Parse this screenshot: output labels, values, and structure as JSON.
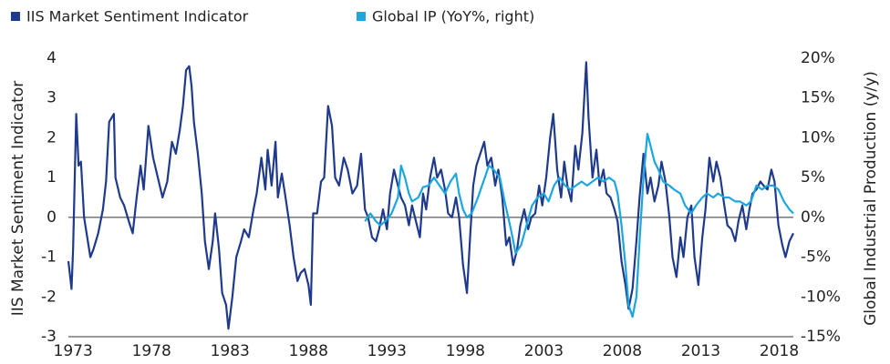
{
  "chart_data": {
    "type": "line",
    "y_label": "IIS Market Sentiment Indicator",
    "y2_label": "Global Industrial Production (y/y)",
    "xlim": [
      1972.7,
      2018.9
    ],
    "xticks": [
      1973,
      1978,
      1983,
      1988,
      1993,
      1998,
      2003,
      2008,
      2013,
      2018
    ],
    "ylim": [
      -3,
      4
    ],
    "yticks": [
      -3,
      -2,
      -1,
      0,
      1,
      2,
      3,
      4
    ],
    "y2lim": [
      -15,
      20
    ],
    "y2ticks": [
      {
        "value": -15,
        "label": "-15%"
      },
      {
        "value": -10,
        "label": "-10%"
      },
      {
        "value": -5,
        "label": "-5%"
      },
      {
        "value": 0,
        "label": "0%"
      },
      {
        "value": 5,
        "label": "5%"
      },
      {
        "value": 10,
        "label": "10%"
      },
      {
        "value": 15,
        "label": "15%"
      },
      {
        "value": 20,
        "label": "20%"
      }
    ],
    "zero_line": true,
    "series": [
      {
        "name": "IIS Market Sentiment Indicator",
        "color": "#1f3a8c",
        "x": [
          1972.7,
          1972.9,
          1973.0,
          1973.2,
          1973.35,
          1973.5,
          1973.7,
          1973.9,
          1974.1,
          1974.3,
          1974.6,
          1974.9,
          1975.1,
          1975.3,
          1975.6,
          1975.7,
          1976.0,
          1976.25,
          1976.55,
          1976.8,
          1977.05,
          1977.3,
          1977.5,
          1977.8,
          1978.1,
          1978.4,
          1978.7,
          1979.0,
          1979.3,
          1979.55,
          1979.8,
          1980.0,
          1980.2,
          1980.4,
          1980.55,
          1980.7,
          1980.95,
          1981.2,
          1981.4,
          1981.65,
          1981.9,
          1982.05,
          1982.3,
          1982.5,
          1982.75,
          1982.9,
          1983.15,
          1983.4,
          1983.7,
          1983.9,
          1984.2,
          1984.5,
          1984.7,
          1985.0,
          1985.25,
          1985.4,
          1985.65,
          1985.9,
          1986.05,
          1986.3,
          1986.5,
          1986.8,
          1987.05,
          1987.3,
          1987.5,
          1987.75,
          1988.0,
          1988.15,
          1988.3,
          1988.55,
          1988.8,
          1989.0,
          1989.25,
          1989.5,
          1989.7,
          1989.95,
          1990.25,
          1990.5,
          1990.8,
          1991.1,
          1991.35,
          1991.6,
          1991.8,
          1992.05,
          1992.3,
          1992.5,
          1992.75,
          1993.0,
          1993.2,
          1993.45,
          1993.7,
          1993.9,
          1994.15,
          1994.4,
          1994.6,
          1994.85,
          1995.1,
          1995.3,
          1995.5,
          1995.75,
          1996.0,
          1996.2,
          1996.45,
          1996.7,
          1996.9,
          1997.15,
          1997.4,
          1997.6,
          1997.85,
          1998.1,
          1998.3,
          1998.5,
          1998.7,
          1998.95,
          1999.2,
          1999.4,
          1999.65,
          1999.9,
          2000.1,
          2000.35,
          2000.6,
          2000.8,
          2001.05,
          2001.3,
          2001.5,
          2001.75,
          2002.0,
          2002.2,
          2002.45,
          2002.7,
          2002.9,
          2003.15,
          2003.4,
          2003.6,
          2003.85,
          2004.1,
          2004.3,
          2004.5,
          2004.75,
          2005.0,
          2005.2,
          2005.45,
          2005.7,
          2005.85,
          2006.1,
          2006.35,
          2006.55,
          2006.8,
          2007.0,
          2007.25,
          2007.5,
          2007.7,
          2007.95,
          2008.2,
          2008.4,
          2008.65,
          2008.9,
          2009.1,
          2009.35,
          2009.6,
          2009.8,
          2010.05,
          2010.3,
          2010.5,
          2010.75,
          2011.0,
          2011.2,
          2011.45,
          2011.7,
          2011.9,
          2012.15,
          2012.4,
          2012.6,
          2012.85,
          2013.1,
          2013.3,
          2013.55,
          2013.8,
          2014.0,
          2014.25,
          2014.5,
          2014.7,
          2014.95,
          2015.2,
          2015.4,
          2015.65,
          2015.9,
          2016.1,
          2016.3,
          2016.55,
          2016.8,
          2017.0,
          2017.25,
          2017.5,
          2017.7,
          2017.95,
          2018.2,
          2018.4,
          2018.65,
          2018.9
        ],
        "values": [
          -1.1,
          -1.8,
          -0.8,
          2.6,
          1.3,
          1.4,
          0.0,
          -0.5,
          -1.0,
          -0.8,
          -0.4,
          0.2,
          0.9,
          2.4,
          2.6,
          1.0,
          0.5,
          0.3,
          -0.1,
          -0.4,
          0.5,
          1.3,
          0.7,
          2.3,
          1.5,
          1.0,
          0.5,
          0.9,
          1.9,
          1.6,
          2.2,
          2.8,
          3.7,
          3.8,
          3.3,
          2.4,
          1.6,
          0.6,
          -0.6,
          -1.3,
          -0.6,
          0.1,
          -0.8,
          -1.9,
          -2.2,
          -2.8,
          -2.0,
          -1.0,
          -0.6,
          -0.3,
          -0.5,
          0.2,
          0.6,
          1.5,
          0.7,
          1.7,
          0.8,
          1.9,
          0.5,
          1.1,
          0.6,
          -0.2,
          -1.0,
          -1.6,
          -1.4,
          -1.3,
          -1.7,
          -2.2,
          0.1,
          0.1,
          0.9,
          1.0,
          2.8,
          2.3,
          1.0,
          0.8,
          1.5,
          1.2,
          0.6,
          0.8,
          1.6,
          0.2,
          0.0,
          -0.5,
          -0.6,
          -0.3,
          0.2,
          -0.3,
          0.6,
          1.2,
          0.8,
          0.5,
          0.3,
          -0.2,
          0.3,
          -0.1,
          -0.5,
          0.6,
          0.2,
          1.0,
          1.5,
          1.0,
          1.2,
          0.7,
          0.1,
          0.0,
          0.5,
          0.0,
          -1.2,
          -1.9,
          -0.5,
          0.8,
          1.3,
          1.6,
          1.9,
          1.3,
          1.5,
          0.8,
          1.2,
          0.5,
          -0.7,
          -0.5,
          -1.2,
          -0.8,
          -0.2,
          0.2,
          -0.3,
          0.0,
          0.1,
          0.8,
          0.3,
          1.0,
          2.0,
          2.6,
          1.2,
          0.5,
          1.4,
          0.8,
          0.4,
          1.8,
          1.2,
          2.1,
          3.9,
          2.5,
          1.0,
          1.7,
          0.8,
          1.2,
          0.6,
          0.5,
          0.2,
          -0.1,
          -1.1,
          -1.7,
          -2.3,
          -1.8,
          -0.6,
          0.5,
          1.6,
          0.6,
          1.0,
          0.4,
          0.8,
          1.4,
          0.9,
          0.0,
          -1.0,
          -1.5,
          -0.5,
          -1.0,
          0.0,
          0.3,
          -1.0,
          -1.7,
          -0.5,
          0.2,
          1.5,
          0.9,
          1.4,
          1.0,
          0.3,
          -0.2,
          -0.3,
          -0.6,
          -0.1,
          0.3,
          -0.3,
          0.2,
          0.6,
          0.7,
          0.9,
          0.8,
          0.7,
          1.2,
          0.9,
          -0.2,
          -0.7,
          -1.0,
          -0.6,
          -0.4
        ]
      },
      {
        "name": "Global IP (YoY%, right)",
        "color": "#1ba6df",
        "axis": "y2",
        "x": [
          1991.6,
          1991.95,
          1992.3,
          1992.6,
          1993.0,
          1993.3,
          1993.7,
          1993.9,
          1994.15,
          1994.4,
          1994.6,
          1995.0,
          1995.3,
          1995.65,
          1996.0,
          1996.35,
          1996.7,
          1997.05,
          1997.4,
          1997.6,
          1997.85,
          1998.1,
          1998.4,
          1998.8,
          1999.15,
          1999.5,
          1999.8,
          2000.2,
          2000.5,
          2000.9,
          2001.2,
          2001.55,
          2001.9,
          2002.25,
          2002.6,
          2003.0,
          2003.3,
          2003.65,
          2004.0,
          2004.35,
          2004.7,
          2005.05,
          2005.4,
          2005.75,
          2006.1,
          2006.45,
          2006.8,
          2007.15,
          2007.5,
          2007.7,
          2007.95,
          2008.2,
          2008.4,
          2008.65,
          2008.9,
          2009.1,
          2009.35,
          2009.6,
          2009.8,
          2010.05,
          2010.3,
          2010.6,
          2011.0,
          2011.3,
          2011.7,
          2012.0,
          2012.4,
          2012.7,
          2013.1,
          2013.4,
          2013.8,
          2014.1,
          2014.5,
          2014.8,
          2015.2,
          2015.5,
          2015.9,
          2016.2,
          2016.55,
          2016.9,
          2017.25,
          2017.6,
          2017.95,
          2018.3,
          2018.65,
          2018.9
        ],
        "values": [
          -0.5,
          0.5,
          -0.5,
          -1.0,
          -0.3,
          0.5,
          2.5,
          6.5,
          5.0,
          3.0,
          2.0,
          2.5,
          3.8,
          4.0,
          5.0,
          4.0,
          3.0,
          4.5,
          5.5,
          3.0,
          1.0,
          0.0,
          0.5,
          2.5,
          4.5,
          6.5,
          6.0,
          5.0,
          2.0,
          -1.5,
          -4.5,
          -3.5,
          -1.0,
          1.5,
          2.5,
          3.0,
          2.0,
          4.0,
          5.0,
          4.0,
          3.5,
          4.0,
          4.5,
          4.0,
          4.5,
          5.0,
          4.5,
          5.0,
          4.5,
          3.0,
          -1.0,
          -6.0,
          -11.0,
          -12.5,
          -10.0,
          -3.0,
          5.0,
          10.5,
          9.0,
          7.0,
          6.0,
          4.5,
          4.0,
          3.5,
          3.0,
          1.5,
          0.5,
          1.5,
          2.5,
          3.0,
          2.5,
          3.0,
          2.5,
          2.5,
          2.0,
          2.0,
          1.5,
          2.0,
          4.0,
          3.5,
          4.0,
          4.0,
          3.5,
          2.0,
          1.0,
          0.5
        ]
      }
    ]
  }
}
